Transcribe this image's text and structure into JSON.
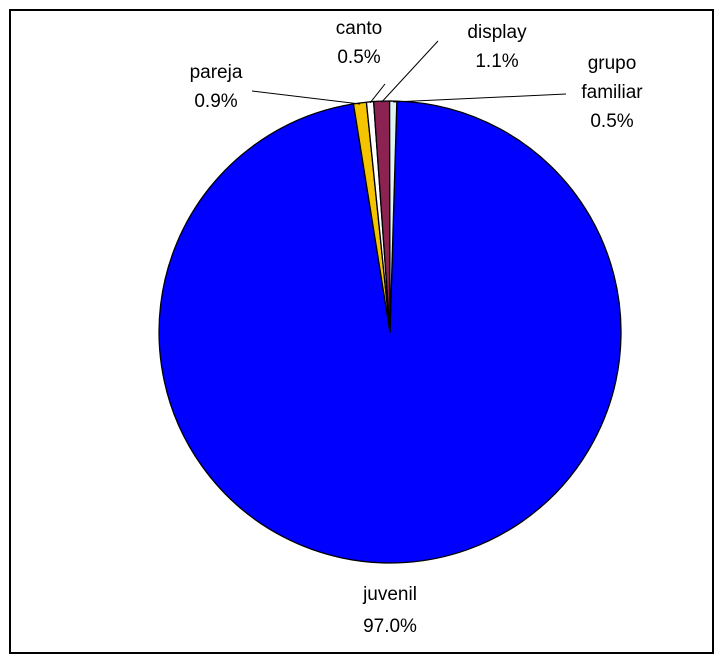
{
  "chart_data": {
    "type": "pie",
    "title": "",
    "slices": [
      {
        "label_lines": [
          "juvenil"
        ],
        "percent_label": "97.0%",
        "value": 97.0,
        "color": "#0000ff"
      },
      {
        "label_lines": [
          "pareja"
        ],
        "percent_label": "0.9%",
        "value": 0.9,
        "color": "#f5c400"
      },
      {
        "label_lines": [
          "canto"
        ],
        "percent_label": "0.5%",
        "value": 0.5,
        "color": "#ffffff"
      },
      {
        "label_lines": [
          "display"
        ],
        "percent_label": "1.1%",
        "value": 1.1,
        "color": "#8b2252"
      },
      {
        "label_lines": [
          "grupo",
          "familiar"
        ],
        "percent_label": "0.5%",
        "value": 0.5,
        "color": "#e0f4f4"
      }
    ],
    "legend": "none",
    "data_labels": "outside with leader lines"
  }
}
